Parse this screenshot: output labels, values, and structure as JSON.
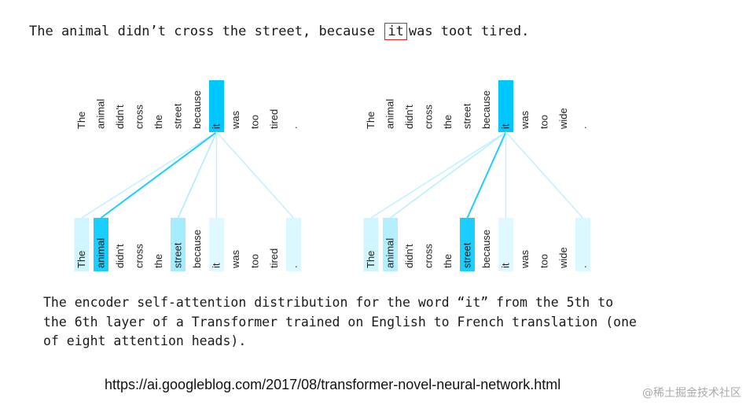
{
  "sentence": {
    "before": "The animal didn’t cross the street, because",
    "highlight": "it",
    "after": "was toot tired."
  },
  "panels": [
    {
      "tokens": [
        "The",
        "animal",
        "didn't",
        "cross",
        "the",
        "street",
        "because",
        "it",
        "was",
        "too",
        "tired",
        "."
      ],
      "query_index": 7,
      "attention": [
        0.18,
        0.9,
        0,
        0,
        0,
        0.35,
        0,
        0.12,
        0,
        0,
        0,
        0.14
      ]
    },
    {
      "tokens": [
        "The",
        "animal",
        "didn't",
        "cross",
        "the",
        "street",
        "because",
        "it",
        "was",
        "too",
        "wide",
        "."
      ],
      "query_index": 7,
      "attention": [
        0.18,
        0.3,
        0,
        0,
        0,
        0.9,
        0,
        0.12,
        0,
        0,
        0,
        0.14
      ]
    }
  ],
  "colors": {
    "accent": "#00c8ff",
    "highlight_box": "#d22222"
  },
  "caption": "The encoder self-attention distribution for the word “it” from the 5th to\nthe 6th layer of a Transformer trained on English to French translation (one\nof eight attention heads).",
  "source_url": "https://ai.googleblog.com/2017/08/transformer-novel-neural-network.html",
  "watermark": "@稀土掘金技术社区"
}
